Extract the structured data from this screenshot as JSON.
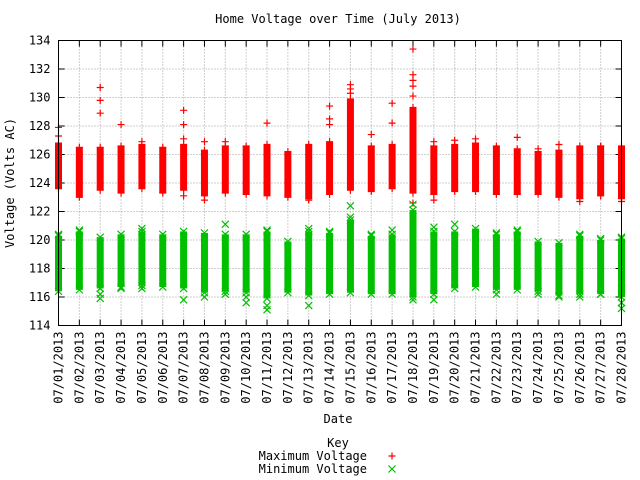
{
  "chart_data": {
    "type": "scatter",
    "title": "Home Voltage over Time (July 2013)",
    "xlabel": "Date",
    "ylabel": "Voltage (Volts AC)",
    "ylim": [
      114,
      134
    ],
    "yticks": [
      114,
      116,
      118,
      120,
      122,
      124,
      126,
      128,
      130,
      132,
      134
    ],
    "grid": true,
    "legend_position": "bottom-center",
    "legend_title": "Key",
    "categories": [
      "07/01/2013",
      "07/02/2013",
      "07/03/2013",
      "07/04/2013",
      "07/05/2013",
      "07/06/2013",
      "07/07/2013",
      "07/08/2013",
      "07/09/2013",
      "07/10/2013",
      "07/11/2013",
      "07/12/2013",
      "07/13/2013",
      "07/14/2013",
      "07/15/2013",
      "07/16/2013",
      "07/17/2013",
      "07/18/2013",
      "07/19/2013",
      "07/20/2013",
      "07/21/2013",
      "07/22/2013",
      "07/23/2013",
      "07/24/2013",
      "07/25/2013",
      "07/26/2013",
      "07/27/2013",
      "07/28/2013"
    ],
    "series": [
      {
        "name": "Maximum Voltage",
        "marker": "plus",
        "color": "#ff0000",
        "bar_low": [
          123.6,
          123.0,
          123.5,
          123.3,
          123.6,
          123.3,
          123.5,
          123.1,
          123.3,
          123.2,
          123.1,
          123.0,
          122.9,
          123.2,
          123.5,
          123.4,
          123.6,
          123.3,
          123.2,
          123.4,
          123.4,
          123.2,
          123.2,
          123.2,
          123.0,
          122.9,
          123.1,
          122.9
        ],
        "bar_high": [
          126.8,
          126.5,
          126.5,
          126.6,
          126.7,
          126.5,
          126.7,
          126.3,
          126.6,
          126.6,
          126.7,
          126.2,
          126.7,
          126.9,
          129.9,
          126.6,
          126.7,
          129.3,
          126.6,
          126.7,
          126.8,
          126.6,
          126.4,
          126.2,
          126.3,
          126.6,
          126.6,
          126.6
        ],
        "outliers": [
          [
            0,
            127.9
          ],
          [
            0,
            127.3
          ],
          [
            2,
            130.7
          ],
          [
            2,
            129.8
          ],
          [
            2,
            128.9
          ],
          [
            3,
            128.1
          ],
          [
            4,
            126.9
          ],
          [
            6,
            129.1
          ],
          [
            6,
            128.1
          ],
          [
            6,
            127.1
          ],
          [
            7,
            126.9
          ],
          [
            8,
            126.9
          ],
          [
            10,
            128.2
          ],
          [
            13,
            129.4
          ],
          [
            13,
            128.5
          ],
          [
            13,
            128.1
          ],
          [
            14,
            130.9
          ],
          [
            14,
            130.6
          ],
          [
            14,
            130.3
          ],
          [
            15,
            127.4
          ],
          [
            16,
            129.6
          ],
          [
            16,
            128.2
          ],
          [
            17,
            133.4
          ],
          [
            17,
            131.6
          ],
          [
            17,
            131.2
          ],
          [
            17,
            130.8
          ],
          [
            17,
            130.1
          ],
          [
            18,
            126.9
          ],
          [
            19,
            127.0
          ],
          [
            20,
            127.1
          ],
          [
            22,
            127.2
          ],
          [
            23,
            126.4
          ],
          [
            24,
            126.7
          ],
          [
            26,
            126.6
          ],
          [
            7,
            122.8
          ],
          [
            6,
            123.1
          ],
          [
            12,
            122.8
          ],
          [
            17,
            122.6
          ],
          [
            18,
            122.8
          ],
          [
            25,
            122.7
          ],
          [
            27,
            122.7
          ]
        ]
      },
      {
        "name": "Minimum Voltage",
        "marker": "x",
        "color": "#00c000",
        "bar_low": [
          116.4,
          116.5,
          116.6,
          116.7,
          116.8,
          116.7,
          116.6,
          116.3,
          116.4,
          116.3,
          115.9,
          116.3,
          116.1,
          116.2,
          116.3,
          116.2,
          116.2,
          116.0,
          116.2,
          116.6,
          116.7,
          116.5,
          116.5,
          116.4,
          116.1,
          116.2,
          116.2,
          116.0
        ],
        "bar_high": [
          120.3,
          120.6,
          120.2,
          120.4,
          120.6,
          120.4,
          120.6,
          120.5,
          120.4,
          120.4,
          120.6,
          119.9,
          120.6,
          120.5,
          121.4,
          120.3,
          120.4,
          122.1,
          120.6,
          120.6,
          120.8,
          120.4,
          120.6,
          119.9,
          119.8,
          120.3,
          120.0,
          120.1
        ],
        "outliers": [
          [
            0,
            120.4
          ],
          [
            1,
            120.7
          ],
          [
            2,
            115.9
          ],
          [
            2,
            116.2
          ],
          [
            3,
            116.6
          ],
          [
            4,
            120.8
          ],
          [
            4,
            116.6
          ],
          [
            6,
            115.8
          ],
          [
            7,
            116.0
          ],
          [
            8,
            121.1
          ],
          [
            8,
            116.2
          ],
          [
            9,
            116.0
          ],
          [
            9,
            115.6
          ],
          [
            10,
            120.7
          ],
          [
            10,
            115.4
          ],
          [
            10,
            115.1
          ],
          [
            12,
            120.8
          ],
          [
            12,
            115.4
          ],
          [
            13,
            120.6
          ],
          [
            14,
            122.4
          ],
          [
            14,
            121.6
          ],
          [
            15,
            120.4
          ],
          [
            16,
            120.7
          ],
          [
            17,
            122.5
          ],
          [
            17,
            115.8
          ],
          [
            18,
            120.9
          ],
          [
            18,
            115.8
          ],
          [
            19,
            121.1
          ],
          [
            21,
            120.5
          ],
          [
            21,
            116.2
          ],
          [
            22,
            120.7
          ],
          [
            23,
            116.2
          ],
          [
            24,
            116.0
          ],
          [
            25,
            120.4
          ],
          [
            25,
            116.0
          ],
          [
            26,
            120.1
          ],
          [
            26,
            116.2
          ],
          [
            27,
            116.6
          ],
          [
            27,
            115.6
          ],
          [
            27,
            115.2
          ],
          [
            27,
            120.2
          ]
        ]
      }
    ]
  }
}
